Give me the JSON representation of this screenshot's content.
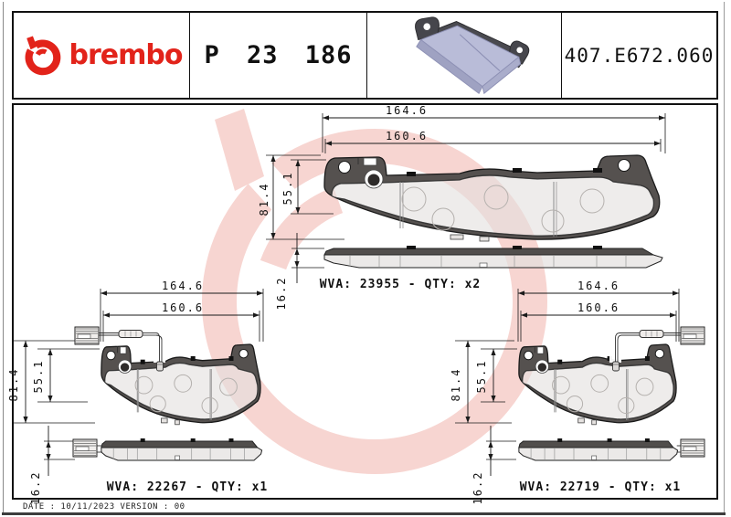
{
  "page": {
    "accent_red": "#e2231a",
    "watermark_pink": "#f7d5d1",
    "line_color": "#1a1a1a"
  },
  "header": {
    "brand_wordmark": "brembo",
    "part_number": "P 23 186",
    "reference_code": "407.E672.060"
  },
  "drawings": [
    {
      "label": "pad-no-sensor",
      "sensor": "none",
      "wva_label": "WVA: 23955 - QTY: x2",
      "dim_width_outer": "164.6",
      "dim_width_inner": "160.6",
      "dim_height_outer": "81.4",
      "dim_height_inner": "55.1",
      "dim_thickness": "16.2"
    },
    {
      "label": "pad-left-sensor",
      "sensor": "left",
      "wva_label": "WVA: 22267 - QTY: x1",
      "dim_width_outer": "164.6",
      "dim_width_inner": "160.6",
      "dim_height_outer": "81.4",
      "dim_height_inner": "55.1",
      "dim_thickness": "16.2"
    },
    {
      "label": "pad-right-sensor",
      "sensor": "right",
      "wva_label": "WVA: 22719 - QTY: x1",
      "dim_width_outer": "164.6",
      "dim_width_inner": "160.6",
      "dim_height_outer": "81.4",
      "dim_height_inner": "55.1",
      "dim_thickness": "16.2"
    }
  ],
  "footer": {
    "revision_line": "DATE : 10/11/2023 VERSION : 00"
  }
}
